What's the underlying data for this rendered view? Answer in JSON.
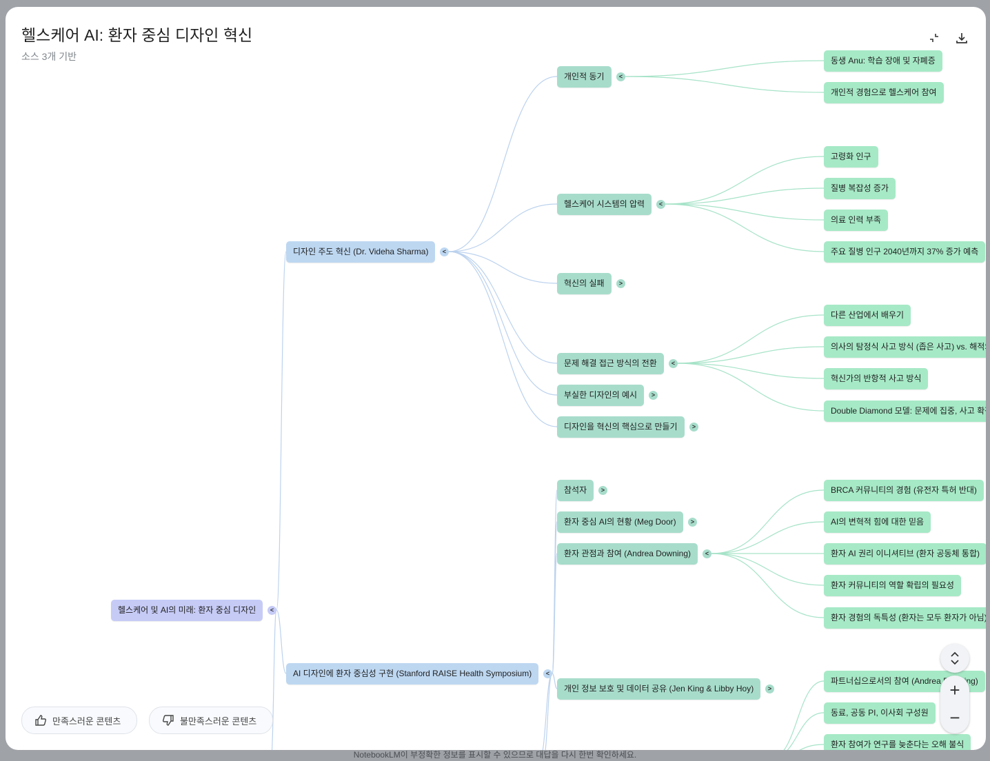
{
  "header": {
    "title": "헬스케어 AI: 환자 중심 디자인 혁신",
    "subtitle": "소스 3개 기반",
    "collapse_icon": "collapse-icon",
    "download_icon": "download-icon"
  },
  "colors": {
    "root": "#c6cbf6",
    "level1": "#bdd7f1",
    "level2": "#a7dccb",
    "level3": "#a6e9c6",
    "edge_blue": "#bcd2ee",
    "edge_green": "#a6e3c8"
  },
  "mindmap": {
    "root": {
      "label": "헬스케어 및 AI의 미래: 환자 중심 디자인",
      "toggle": "<"
    },
    "level1": [
      {
        "label": "디자인 주도 혁신 (Dr. Videha Sharma)",
        "toggle": "<"
      },
      {
        "label": "AI 디자인에 환자 중심성 구현 (Stanford RAISE Health Symposium)",
        "toggle": "<"
      }
    ],
    "level2": [
      {
        "label": "개인적 동기",
        "toggle": "<"
      },
      {
        "label": "헬스케어 시스템의 압력",
        "toggle": "<"
      },
      {
        "label": "혁신의 실패",
        "toggle": ">"
      },
      {
        "label": "문제 해결 접근 방식의 전환",
        "toggle": "<"
      },
      {
        "label": "부실한 디자인의 예시",
        "toggle": ">"
      },
      {
        "label": "디자인을 혁신의 핵심으로 만들기",
        "toggle": ">"
      },
      {
        "label": "참석자",
        "toggle": ">"
      },
      {
        "label": "환자 중심 AI의 현황 (Meg Door)",
        "toggle": ">"
      },
      {
        "label": "환자 관점과 참여 (Andrea Downing)",
        "toggle": "<"
      },
      {
        "label": "개인 정보 보호 및 데이터 공유 (Jen King & Libby Hoy)",
        "toggle": ">"
      }
    ],
    "level3": [
      {
        "label": "동생 Anu: 학습 장애 및 자폐증"
      },
      {
        "label": "개인적 경험으로 헬스케어 참여"
      },
      {
        "label": "고령화 인구"
      },
      {
        "label": "질병 복잡성 증가"
      },
      {
        "label": "의료 인력 부족"
      },
      {
        "label": "주요 질병 인구 2040년까지 37% 증가 예측"
      },
      {
        "label": "다른 산업에서 배우기"
      },
      {
        "label": "의사의 탐정식 사고 방식 (좁은 사고) vs. 해적의 망원경"
      },
      {
        "label": "혁신가의 반항적 사고 방식"
      },
      {
        "label": "Double Diamond 모델: 문제에 집중, 사고 확장 후"
      },
      {
        "label": "BRCA 커뮤니티의 경험 (유전자 특허 반대)"
      },
      {
        "label": "AI의 변혁적 힘에 대한 믿음"
      },
      {
        "label": "환자 AI 권리 이니셔티브 (환자 공동체 통합)"
      },
      {
        "label": "환자 커뮤니티의 역할 확립의 필요성"
      },
      {
        "label": "환자 경험의 독특성 (환자는 모두 환자가 아님)"
      },
      {
        "label": "파트너십으로서의 참여 (Andrea Downing)"
      },
      {
        "label": "동료, 공동 PI, 이사회 구성원"
      },
      {
        "label": "환자 참여가 연구를 늦춘다는 오해 불식"
      }
    ]
  },
  "feedback": {
    "like_label": "만족스러운 콘텐츠",
    "dislike_label": "불만족스러운 콘텐츠",
    "like_icon": "thumbs-up-icon",
    "dislike_icon": "thumbs-down-icon"
  },
  "zoom_controls": {
    "fit_icon": "expand-vertical-icon",
    "zoom_in": "+",
    "zoom_out": "−"
  },
  "footer": {
    "disclaimer": "NotebookLM이 부정확한 정보를 표시할 수 있으므로 대답을 다시 한번 확인하세요."
  }
}
